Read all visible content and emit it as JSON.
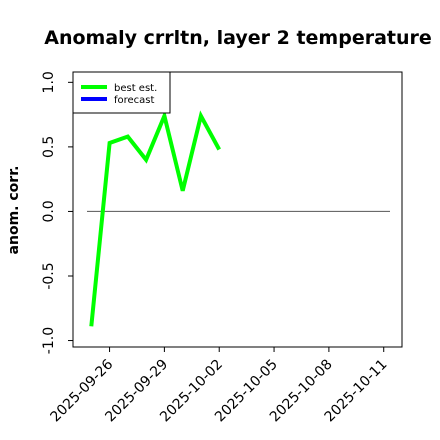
{
  "chart_data": {
    "type": "line",
    "title": "Anomaly crrltn, layer 2 temperature",
    "ylabel": "anom. corr.",
    "xlabel": "",
    "ylim": [
      -1.05,
      1.08
    ],
    "xlim": [
      "2025-09-24",
      "2025-10-12"
    ],
    "yticks": [
      -1.0,
      -0.5,
      0.0,
      0.5,
      1.0
    ],
    "ytick_labels": [
      "-1.0",
      "-0.5",
      "0.0",
      "0.5",
      "1.0"
    ],
    "xticks": [
      "2025-09-26",
      "2025-09-29",
      "2025-10-02",
      "2025-10-05",
      "2025-10-08",
      "2025-10-11"
    ],
    "xtick_labels": [
      "2025-09-26",
      "2025-09-29",
      "2025-10-02",
      "2025-10-05",
      "2025-10-08",
      "2025-10-11"
    ],
    "highlighted_tick": "2025-10-02",
    "highlight_color": "#2e8b2e",
    "zero_line": true,
    "grid": false,
    "legend_position": "upper-left",
    "series": [
      {
        "name": "best est.",
        "color": "#00ff00",
        "x": [
          "2025-09-25",
          "2025-09-26",
          "2025-09-27",
          "2025-09-28",
          "2025-09-29",
          "2025-09-30",
          "2025-10-01",
          "2025-10-02"
        ],
        "values": [
          -0.89,
          0.53,
          0.58,
          0.4,
          0.74,
          0.16,
          0.74,
          0.48
        ]
      },
      {
        "name": "forecast",
        "color": "#0000ff",
        "x": [],
        "values": []
      }
    ]
  }
}
